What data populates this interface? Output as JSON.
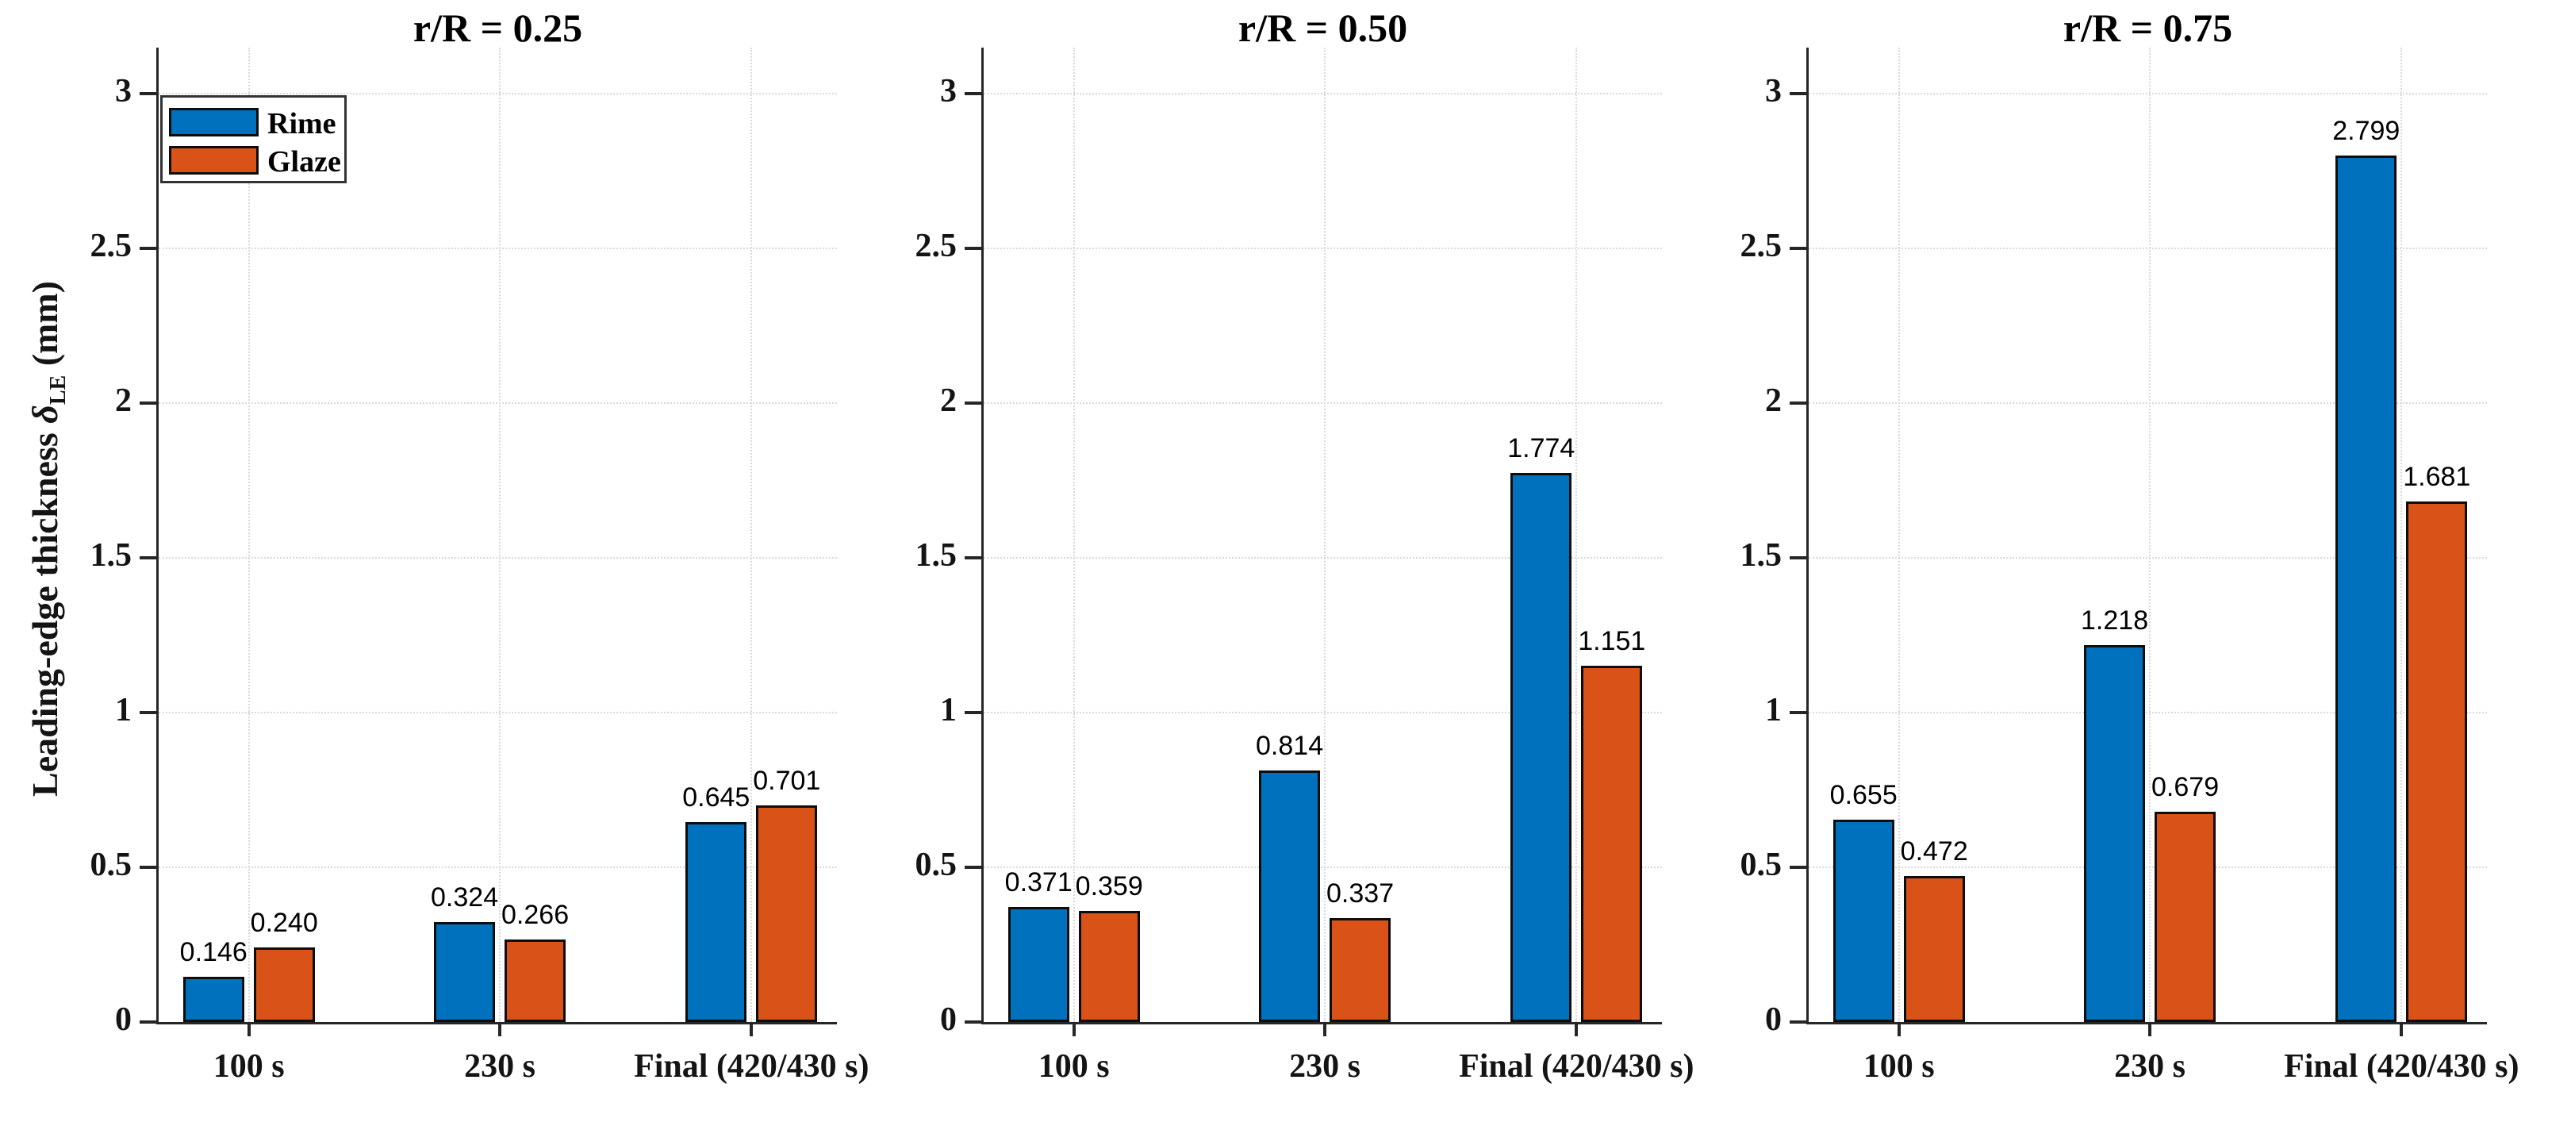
{
  "figure": {
    "ylabel": {
      "prefix": "Leading-edge thickness ",
      "symbol": "δ",
      "subscript": "LE",
      "suffix": " (mm)"
    },
    "background_color": "#ffffff",
    "ytick_labels": [
      "0",
      "0.5",
      "1",
      "1.5",
      "2",
      "2.5",
      "3"
    ]
  },
  "legend": {
    "position": "top-left-of-first-panel",
    "items": [
      {
        "label": "Rime",
        "color": "#0072BD"
      },
      {
        "label": "Glaze",
        "color": "#D95319"
      }
    ]
  },
  "style": {
    "axis_color": "#262626",
    "grid_color": "#d9d9d9",
    "bar_edge_color": "#0d0d0d",
    "rime_color": "#0072BD",
    "glaze_color": "#D95319"
  },
  "chart_data": [
    {
      "type": "bar",
      "title": "r/R = 0.25",
      "categories": [
        "100 s",
        "230 s",
        "Final (420/430 s)"
      ],
      "series": [
        {
          "name": "Rime",
          "color": "#0072BD",
          "values": [
            0.146,
            0.324,
            0.645
          ]
        },
        {
          "name": "Glaze",
          "color": "#D95319",
          "values": [
            0.24,
            0.266,
            0.701
          ]
        }
      ],
      "xlabel": "",
      "ylabel": "Leading-edge thickness δLE (mm)",
      "ylim": [
        0,
        3.15
      ],
      "yticks": [
        0,
        0.5,
        1,
        1.5,
        2,
        2.5,
        3
      ],
      "grid": true,
      "value_label_decimals": 3,
      "has_legend": true
    },
    {
      "type": "bar",
      "title": "r/R = 0.50",
      "categories": [
        "100 s",
        "230 s",
        "Final (420/430 s)"
      ],
      "series": [
        {
          "name": "Rime",
          "color": "#0072BD",
          "values": [
            0.371,
            0.814,
            1.774
          ]
        },
        {
          "name": "Glaze",
          "color": "#D95319",
          "values": [
            0.359,
            0.337,
            1.151
          ]
        }
      ],
      "xlabel": "",
      "ylabel": "Leading-edge thickness δLE (mm)",
      "ylim": [
        0,
        3.15
      ],
      "yticks": [
        0,
        0.5,
        1,
        1.5,
        2,
        2.5,
        3
      ],
      "grid": true,
      "value_label_decimals": 3,
      "has_legend": false
    },
    {
      "type": "bar",
      "title": "r/R = 0.75",
      "categories": [
        "100 s",
        "230 s",
        "Final (420/430 s)"
      ],
      "series": [
        {
          "name": "Rime",
          "color": "#0072BD",
          "values": [
            0.655,
            1.218,
            2.799
          ]
        },
        {
          "name": "Glaze",
          "color": "#D95319",
          "values": [
            0.472,
            0.679,
            1.681
          ]
        }
      ],
      "xlabel": "",
      "ylabel": "Leading-edge thickness δLE (mm)",
      "ylim": [
        0,
        3.15
      ],
      "yticks": [
        0,
        0.5,
        1,
        1.5,
        2,
        2.5,
        3
      ],
      "grid": true,
      "value_label_decimals": 3,
      "has_legend": false
    }
  ]
}
